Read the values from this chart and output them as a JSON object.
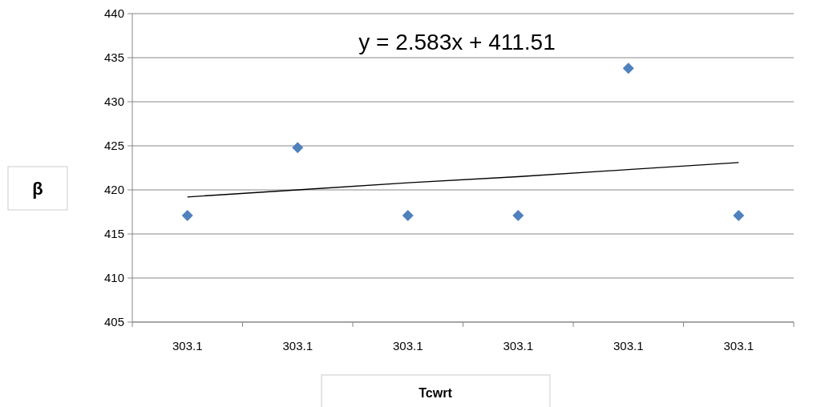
{
  "chart_data": {
    "type": "scatter",
    "xlabel": "Tcwrt",
    "ylabel": "β",
    "categories": [
      "303.1",
      "303.1",
      "303.1",
      "303.1",
      "303.1",
      "303.1"
    ],
    "series": [
      {
        "color": "#4f81bd",
        "marker": "diamond",
        "values": [
          417.1,
          424.8,
          417.1,
          417.1,
          433.8,
          417.1
        ]
      },
      {
        "type": "line",
        "color": "#000000",
        "marker": "none",
        "line_style": "solid",
        "values": [
          419.2,
          420.0,
          420.8,
          421.5,
          422.3,
          423.1
        ]
      }
    ],
    "annotations": [
      "y = 2.583x + 411.51"
    ],
    "ylim": [
      405,
      440
    ],
    "yticks": [
      405,
      410,
      415,
      420,
      425,
      430,
      435,
      440
    ],
    "grid": "y"
  }
}
